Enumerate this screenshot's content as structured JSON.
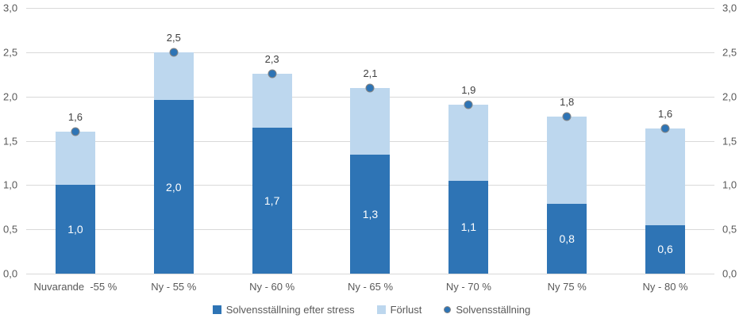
{
  "chart_data": {
    "type": "bar",
    "stacked": true,
    "title": "",
    "xlabel": "",
    "ylabel": "",
    "ylim": [
      0,
      3
    ],
    "grid": true,
    "legend_position": "bottom",
    "categories": [
      "Nuvarande  -55 %",
      "Ny - 55 %",
      "Ny - 60 %",
      "Ny - 65 %",
      "Ny - 70 %",
      "Ny 75 %",
      "Ny - 80 %"
    ],
    "series": [
      {
        "name": "Solvensställning efter stress",
        "kind": "bar",
        "color": "#2E74B5",
        "values": [
          1.0,
          1.96,
          1.65,
          1.34,
          1.05,
          0.79,
          0.55
        ],
        "labels": [
          "1,0",
          "2,0",
          "1,7",
          "1,3",
          "1,1",
          "0,8",
          "0,6"
        ],
        "label_color": "#FFFFFF"
      },
      {
        "name": "Förlust",
        "kind": "bar",
        "color": "#BDD7EE",
        "values": [
          0.6,
          0.54,
          0.61,
          0.76,
          0.86,
          0.98,
          1.09
        ]
      },
      {
        "name": "Solvensställning",
        "kind": "point",
        "color": "#2E74B5",
        "ring_color": "#848484",
        "values": [
          1.6,
          2.5,
          2.26,
          2.1,
          1.91,
          1.77,
          1.64
        ],
        "labels": [
          "1,6",
          "2,5",
          "2,3",
          "2,1",
          "1,9",
          "1,8",
          "1,6"
        ],
        "label_color": "#404040"
      }
    ],
    "yticks": [
      {
        "label": "3,0",
        "value": 3.0
      },
      {
        "label": "2,5",
        "value": 2.5
      },
      {
        "label": "2,0",
        "value": 2.0
      },
      {
        "label": "1,5",
        "value": 1.5
      },
      {
        "label": "1,0",
        "value": 1.0
      },
      {
        "label": "0,5",
        "value": 0.5
      },
      {
        "label": "0,0",
        "value": 0.0
      }
    ],
    "colors": {
      "gridline": "#D9D9D9",
      "axis_text": "#595959",
      "data_label": "#404040",
      "bar_value_label": "#FFFFFF"
    }
  }
}
